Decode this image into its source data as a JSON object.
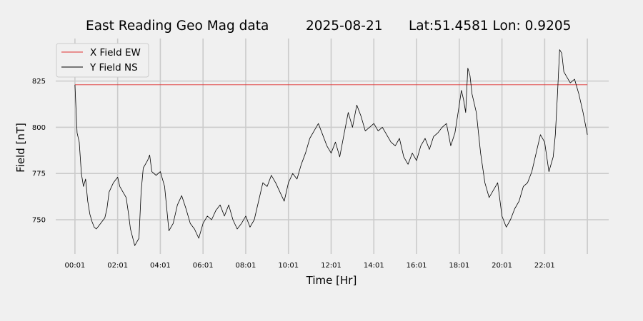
{
  "title": {
    "station": "East Reading Geo Mag data",
    "date": "2025-08-21",
    "location": "Lat:51.4581  Lon: 0.9205"
  },
  "chart_data": {
    "type": "line",
    "xlabel": "Time  [Hr]",
    "ylabel": "Field  [nT]",
    "x_range_hours": [
      0,
      24
    ],
    "xlim": [
      -0.9,
      25.0
    ],
    "ylim": [
      731.5,
      848.0
    ],
    "x_ticks": [
      {
        "hour": 0,
        "label": "00:01"
      },
      {
        "hour": 2,
        "label": "02:01"
      },
      {
        "hour": 4,
        "label": "04:01"
      },
      {
        "hour": 6,
        "label": "06:01"
      },
      {
        "hour": 8,
        "label": "08:01"
      },
      {
        "hour": 10,
        "label": "10:01"
      },
      {
        "hour": 12,
        "label": "12:01"
      },
      {
        "hour": 14,
        "label": "14:01"
      },
      {
        "hour": 16,
        "label": "16:01"
      },
      {
        "hour": 18,
        "label": "18:01"
      },
      {
        "hour": 20,
        "label": "20:01"
      },
      {
        "hour": 22,
        "label": "22:01"
      },
      {
        "hour": 24,
        "label": ""
      }
    ],
    "y_ticks": [
      750,
      775,
      800,
      825
    ],
    "grid": true,
    "legend": "upper-left",
    "series": [
      {
        "name": "X Field EW",
        "color": "#e03030",
        "x": [
          0,
          24
        ],
        "y": [
          823,
          823
        ]
      },
      {
        "name": "Y Field NS",
        "color": "#000000",
        "x": [
          0,
          0.1,
          0.2,
          0.3,
          0.4,
          0.5,
          0.6,
          0.7,
          0.8,
          0.9,
          1.0,
          1.2,
          1.4,
          1.5,
          1.6,
          1.8,
          2.0,
          2.1,
          2.2,
          2.4,
          2.5,
          2.6,
          2.8,
          3.0,
          3.1,
          3.2,
          3.4,
          3.5,
          3.6,
          3.8,
          4.0,
          4.2,
          4.4,
          4.6,
          4.8,
          5.0,
          5.2,
          5.4,
          5.6,
          5.8,
          6.0,
          6.2,
          6.4,
          6.6,
          6.8,
          7.0,
          7.2,
          7.4,
          7.6,
          7.8,
          8.0,
          8.2,
          8.4,
          8.6,
          8.8,
          9.0,
          9.2,
          9.4,
          9.6,
          9.8,
          10.0,
          10.2,
          10.4,
          10.6,
          10.8,
          11.0,
          11.2,
          11.4,
          11.6,
          11.8,
          12.0,
          12.2,
          12.4,
          12.6,
          12.8,
          13.0,
          13.2,
          13.4,
          13.6,
          13.8,
          14.0,
          14.2,
          14.4,
          14.6,
          14.8,
          15.0,
          15.2,
          15.4,
          15.6,
          15.8,
          16.0,
          16.2,
          16.4,
          16.6,
          16.8,
          17.0,
          17.2,
          17.4,
          17.6,
          17.8,
          18.0,
          18.1,
          18.2,
          18.3,
          18.4,
          18.5,
          18.6,
          18.8,
          19.0,
          19.2,
          19.4,
          19.6,
          19.8,
          20.0,
          20.2,
          20.4,
          20.6,
          20.8,
          21.0,
          21.2,
          21.4,
          21.6,
          21.8,
          22.0,
          22.2,
          22.4,
          22.5,
          22.6,
          22.7,
          22.8,
          22.9,
          23.0,
          23.2,
          23.4,
          23.6,
          23.8,
          24.0
        ],
        "y": [
          823,
          797,
          792,
          775,
          768,
          772,
          760,
          753,
          749,
          746,
          745,
          748,
          751,
          756,
          765,
          770,
          773,
          768,
          766,
          762,
          754,
          745,
          736,
          740,
          765,
          778,
          782,
          785,
          776,
          774,
          776,
          768,
          744,
          748,
          758,
          763,
          756,
          748,
          745,
          740,
          748,
          752,
          750,
          755,
          758,
          752,
          758,
          750,
          745,
          748,
          752,
          746,
          750,
          760,
          770,
          768,
          774,
          770,
          765,
          760,
          770,
          775,
          772,
          780,
          786,
          794,
          798,
          802,
          796,
          790,
          786,
          792,
          784,
          796,
          808,
          800,
          812,
          806,
          798,
          800,
          802,
          798,
          800,
          796,
          792,
          790,
          794,
          784,
          780,
          786,
          782,
          790,
          794,
          788,
          795,
          797,
          800,
          802,
          790,
          797,
          812,
          820,
          815,
          808,
          832,
          828,
          818,
          808,
          786,
          770,
          762,
          766,
          770,
          752,
          746,
          750,
          756,
          760,
          768,
          770,
          776,
          786,
          796,
          792,
          776,
          784,
          796,
          818,
          842,
          840,
          830,
          828,
          824,
          826,
          818,
          808,
          796
        ]
      }
    ]
  }
}
